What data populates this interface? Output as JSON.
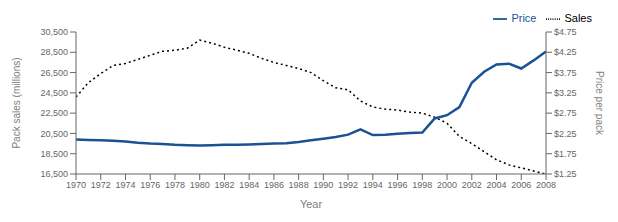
{
  "chart_data": {
    "type": "line",
    "x": [
      1970,
      1971,
      1972,
      1973,
      1974,
      1975,
      1976,
      1977,
      1978,
      1979,
      1980,
      1981,
      1982,
      1983,
      1984,
      1985,
      1986,
      1987,
      1988,
      1989,
      1990,
      1991,
      1992,
      1993,
      1994,
      1995,
      1996,
      1997,
      1998,
      1999,
      2000,
      2001,
      2002,
      2003,
      2004,
      2005,
      2006,
      2007,
      2008
    ],
    "xlabel": "Year",
    "ylabel": "Pack sales (millions)",
    "y2label": "Price per pack",
    "xlim": [
      1970,
      2008
    ],
    "xticks": [
      1970,
      1972,
      1974,
      1976,
      1978,
      1980,
      1982,
      1984,
      1986,
      1988,
      1990,
      1992,
      1994,
      1996,
      1998,
      2000,
      2002,
      2004,
      2006,
      2008
    ],
    "ylim": [
      16500,
      30500
    ],
    "yticks": [
      {
        "value": 16500,
        "label": "16,500"
      },
      {
        "value": 18500,
        "label": "18,500"
      },
      {
        "value": 20500,
        "label": "20,500"
      },
      {
        "value": 22500,
        "label": "22,500"
      },
      {
        "value": 24500,
        "label": "24,500"
      },
      {
        "value": 26500,
        "label": "26,500"
      },
      {
        "value": 28500,
        "label": "28,500"
      },
      {
        "value": 30500,
        "label": "30,500"
      }
    ],
    "y2lim": [
      1.25,
      4.75
    ],
    "y2ticks": [
      {
        "value": 1.25,
        "label": "$1.25"
      },
      {
        "value": 1.75,
        "label": "$1.75"
      },
      {
        "value": 2.25,
        "label": "$2.25"
      },
      {
        "value": 2.75,
        "label": "$2.75"
      },
      {
        "value": 3.25,
        "label": "$3.25"
      },
      {
        "value": 3.75,
        "label": "$3.75"
      },
      {
        "value": 4.25,
        "label": "$4.25"
      },
      {
        "value": 4.75,
        "label": "$4.75"
      }
    ],
    "grid": false,
    "legend": "upper right",
    "series": [
      {
        "name": "Sales",
        "color": "#000000",
        "line_style": "dotted",
        "values": [
          24100,
          25500,
          26400,
          27200,
          27400,
          27800,
          28200,
          28600,
          28700,
          28900,
          29700,
          29400,
          29000,
          28700,
          28400,
          27900,
          27500,
          27200,
          26900,
          26500,
          25700,
          25000,
          24800,
          23700,
          23100,
          22900,
          22800,
          22600,
          22500,
          22100,
          21500,
          20200,
          19500,
          18700,
          17900,
          17400,
          17100,
          16800,
          16500
        ]
      },
      {
        "name": "Price",
        "color": "#1a5295",
        "line_style": "solid",
        "axis": "y2",
        "values": [
          2.1,
          2.09,
          2.08,
          2.07,
          2.05,
          2.02,
          2.0,
          1.99,
          1.97,
          1.96,
          1.95,
          1.96,
          1.97,
          1.97,
          1.98,
          1.99,
          2.0,
          2.01,
          2.04,
          2.08,
          2.12,
          2.16,
          2.22,
          2.35,
          2.21,
          2.22,
          2.24,
          2.26,
          2.27,
          2.62,
          2.7,
          2.9,
          3.5,
          3.77,
          3.95,
          3.97,
          3.85,
          4.05,
          4.27
        ]
      }
    ]
  }
}
